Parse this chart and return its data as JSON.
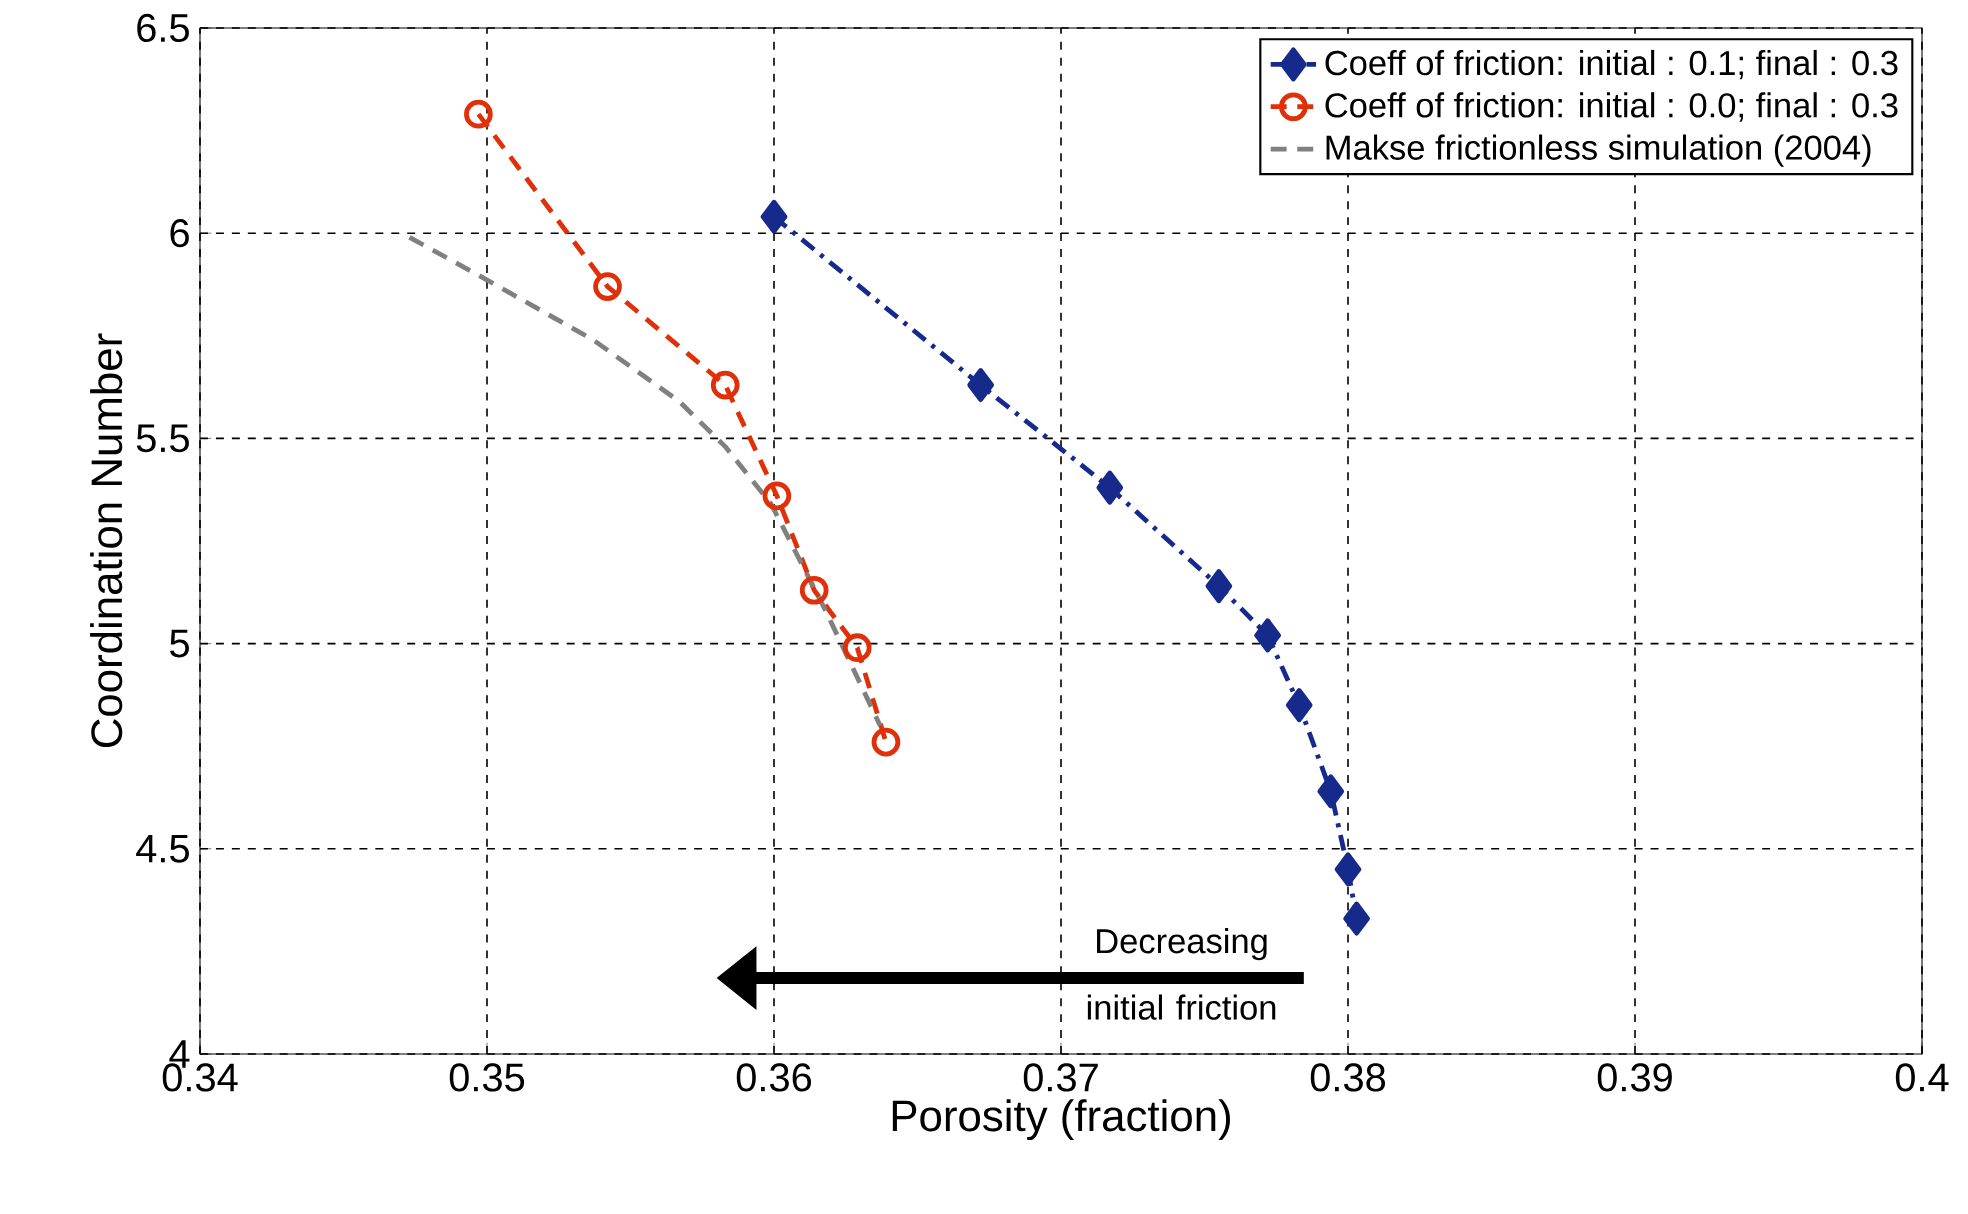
{
  "chart_data": {
    "type": "line",
    "xlabel": "Porosity (fraction)",
    "ylabel": "Coordination Number",
    "xlim": [
      0.34,
      0.4
    ],
    "xticks": [
      0.34,
      0.35,
      0.36,
      0.37,
      0.38,
      0.39,
      0.4
    ],
    "ylim": [
      4,
      6.5
    ],
    "yticks": [
      4,
      4.5,
      5,
      5.5,
      6,
      6.5
    ],
    "grid": true,
    "legend": "top right",
    "annotations": [
      "Decreasing initial friction"
    ],
    "series": [
      {
        "name": "Coeff of friction: initial  : 0.1; final : 0.3",
        "color": "#162a8c",
        "marker": "diamond",
        "line_style": "dashdot",
        "x": [
          0.36,
          0.3672,
          0.3717,
          0.3755,
          0.3772,
          0.3783,
          0.3794,
          0.38,
          0.3803
        ],
        "values": [
          6.04,
          5.63,
          5.38,
          5.14,
          5.02,
          4.85,
          4.64,
          4.45,
          4.33
        ]
      },
      {
        "name": "Coeff of friction: initial  : 0.0; final : 0.3",
        "color": "#e0300a",
        "marker": "circle",
        "line_style": "dashed",
        "x": [
          0.3497,
          0.3542,
          0.3583,
          0.3601,
          0.3614,
          0.3629,
          0.3639
        ],
        "values": [
          6.29,
          5.87,
          5.63,
          5.36,
          5.13,
          4.99,
          4.76
        ]
      },
      {
        "name": "Makse frictionless simulation (2004)",
        "color": "#808080",
        "line_style": "dashed",
        "x": [
          0.3473,
          0.3499,
          0.3537,
          0.3567,
          0.3583,
          0.3599,
          0.3618,
          0.3637
        ],
        "values": [
          5.99,
          5.89,
          5.74,
          5.59,
          5.48,
          5.34,
          5.08,
          4.8
        ]
      }
    ]
  }
}
